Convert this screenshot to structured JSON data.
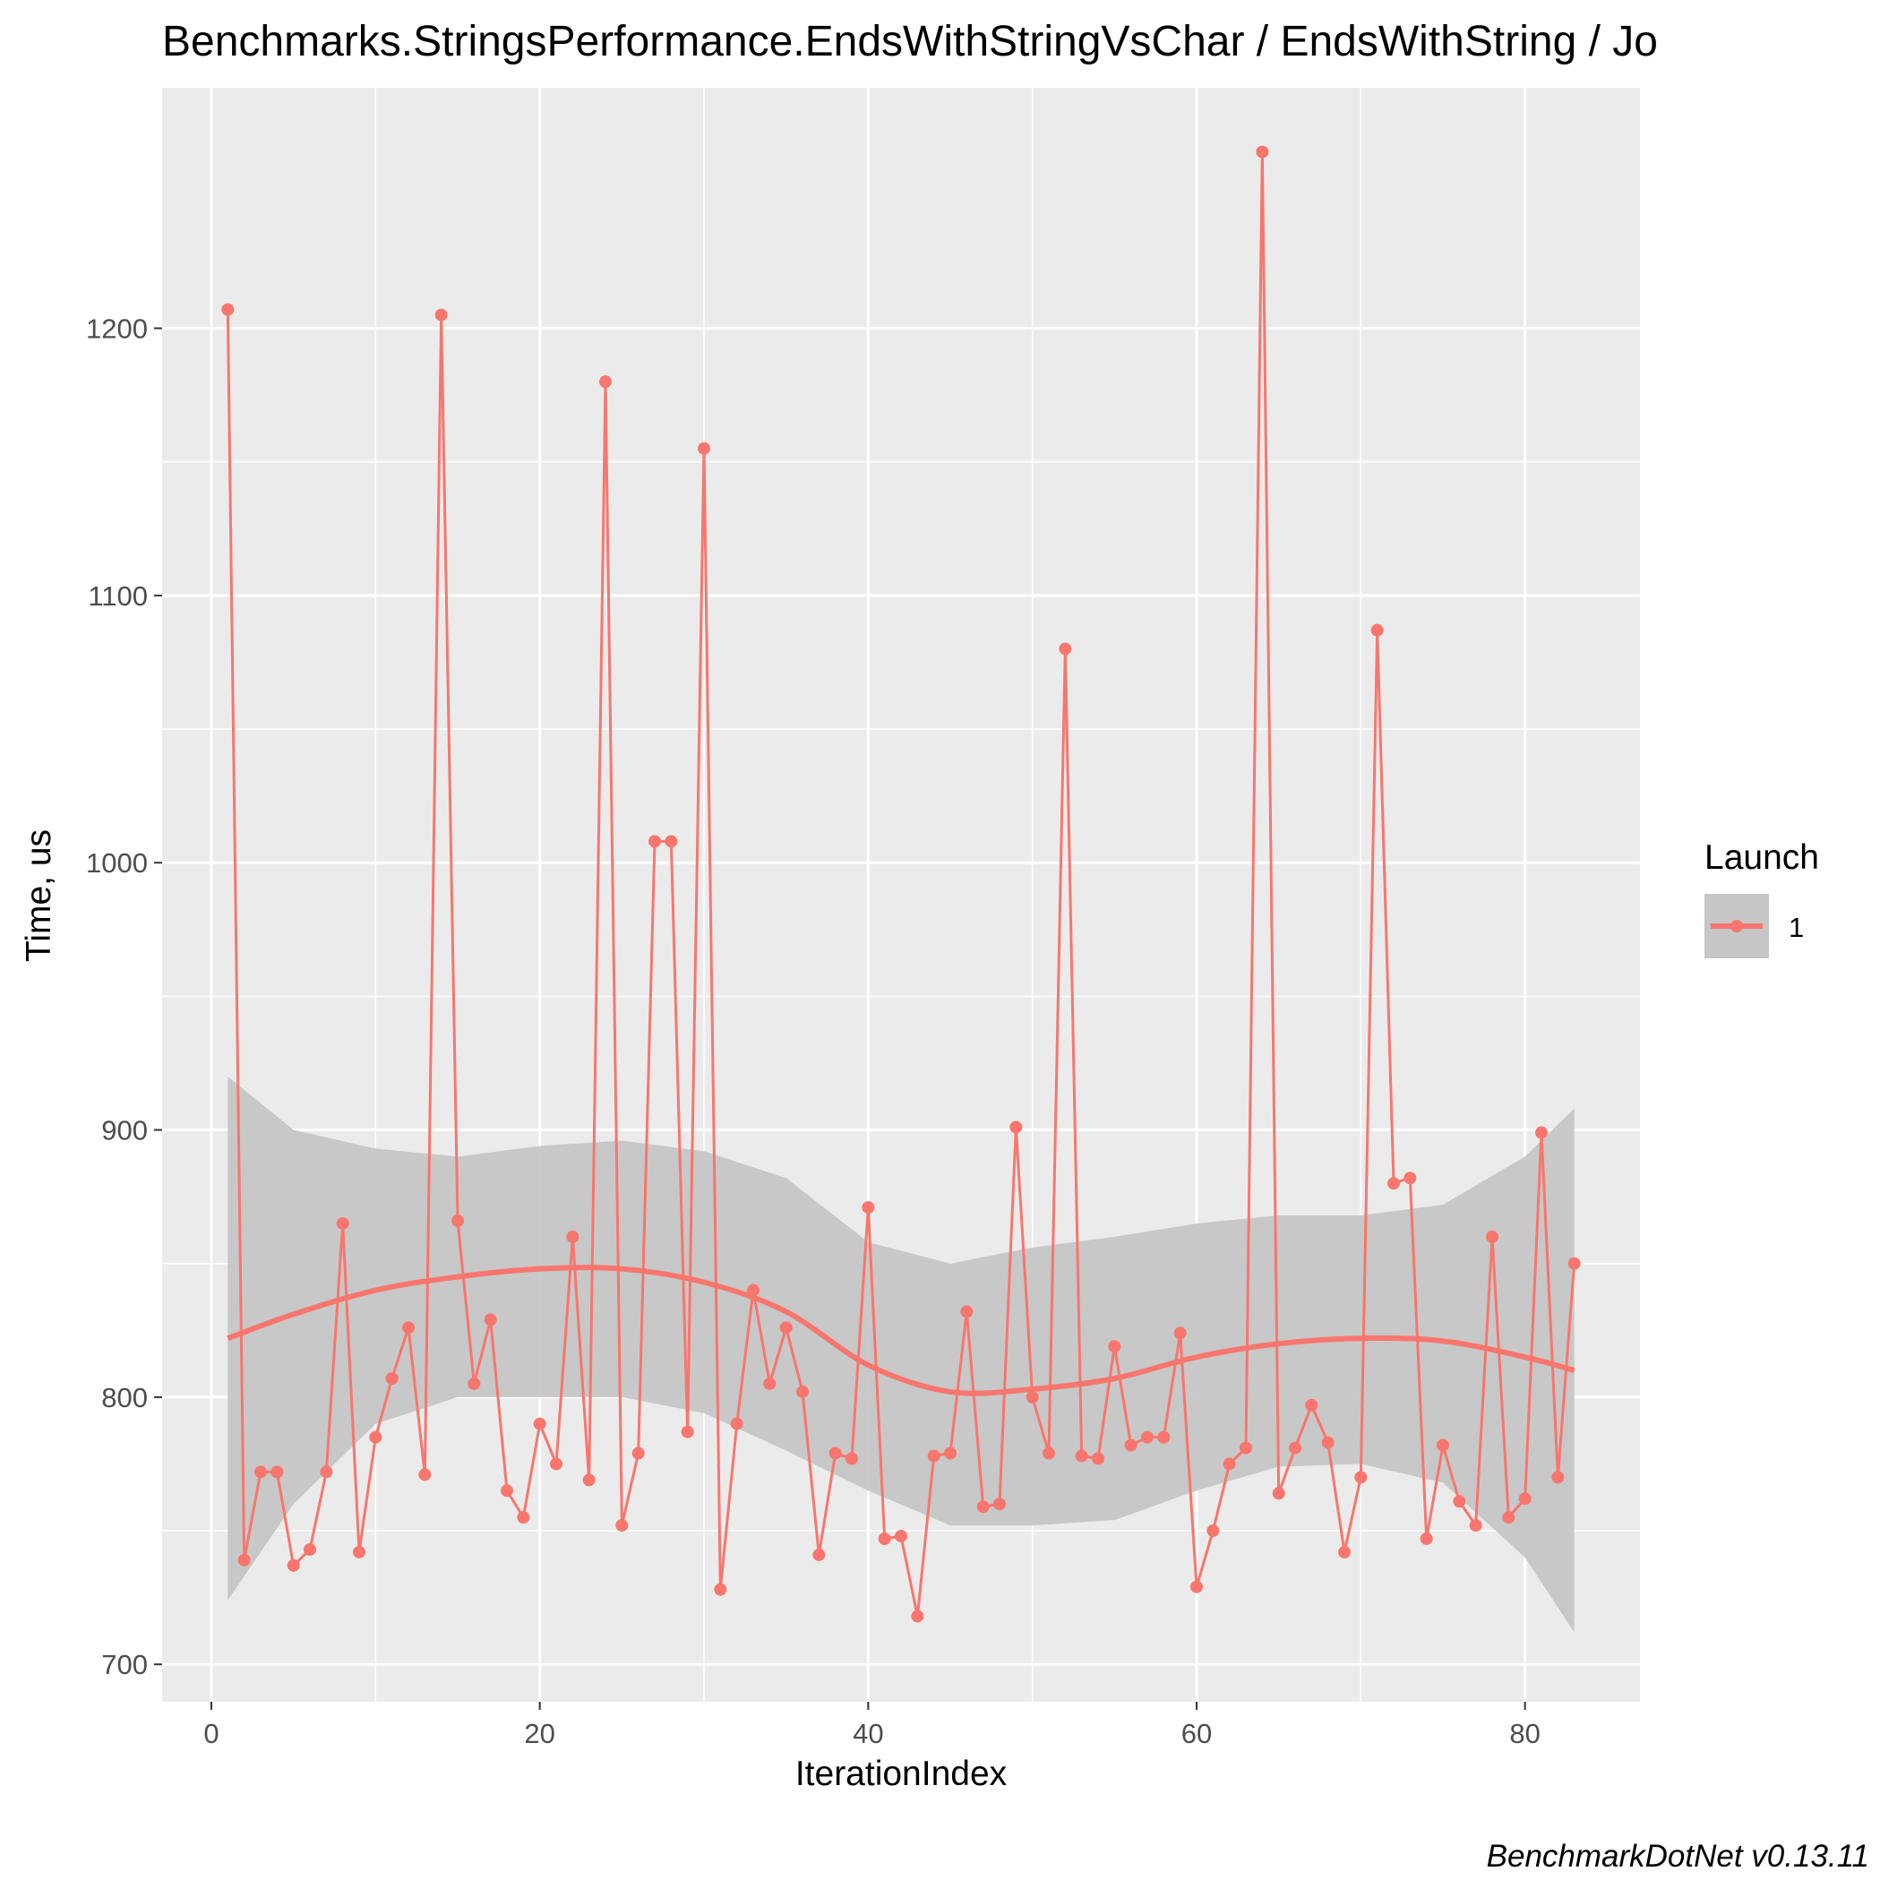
{
  "chart_data": {
    "type": "line",
    "title": "Benchmarks.StringsPerformance.EndsWithStringVsChar / EndsWithString / Jo",
    "xlabel": "IterationIndex",
    "ylabel": "Time, us",
    "xlim": [
      -3,
      87
    ],
    "ylim": [
      686,
      1290
    ],
    "x_ticks": [
      0,
      20,
      40,
      60,
      80
    ],
    "y_ticks": [
      700,
      800,
      900,
      1000,
      1100,
      1200
    ],
    "x_tick_labels": [
      "0",
      "20",
      "40",
      "60",
      "80"
    ],
    "y_tick_labels": [
      "700",
      "800",
      "900",
      "1000",
      "1100",
      "1200"
    ],
    "grid": true,
    "legend": {
      "title": "Launch",
      "placement": "right",
      "entries": [
        "1"
      ]
    },
    "caption": "BenchmarkDotNet v0.13.11",
    "colors": {
      "series": "#f8766d",
      "panel": "#ebebeb",
      "band": "#c6c6c6",
      "grid": "#ffffff",
      "tick_text": "#4d4d4d"
    },
    "series": [
      {
        "name": "1",
        "x": [
          1,
          2,
          3,
          4,
          5,
          6,
          7,
          8,
          9,
          10,
          11,
          12,
          13,
          14,
          15,
          16,
          17,
          18,
          19,
          20,
          21,
          22,
          23,
          24,
          25,
          26,
          27,
          28,
          29,
          30,
          31,
          32,
          33,
          34,
          35,
          36,
          37,
          38,
          39,
          40,
          41,
          42,
          43,
          44,
          45,
          46,
          47,
          48,
          49,
          50,
          51,
          52,
          53,
          54,
          55,
          56,
          57,
          58,
          59,
          60,
          61,
          62,
          63,
          64,
          65,
          66,
          67,
          68,
          69,
          70,
          71,
          72,
          73,
          74,
          75,
          76,
          77,
          78,
          79,
          80,
          81,
          82,
          83
        ],
        "values": [
          1207,
          739,
          772,
          772,
          737,
          743,
          772,
          865,
          742,
          785,
          807,
          826,
          771,
          1205,
          866,
          805,
          829,
          765,
          755,
          790,
          775,
          860,
          769,
          1180,
          752,
          779,
          1008,
          1008,
          787,
          1155,
          728,
          790,
          840,
          805,
          826,
          802,
          741,
          779,
          777,
          871,
          747,
          748,
          718,
          778,
          779,
          832,
          759,
          760,
          901,
          800,
          779,
          1080,
          778,
          777,
          819,
          782,
          785,
          785,
          824,
          729,
          750,
          775,
          781,
          1266,
          764,
          781,
          797,
          783,
          742,
          770,
          1087,
          880,
          882,
          747,
          782,
          761,
          752,
          860,
          755,
          762,
          899,
          770,
          850
        ]
      }
    ],
    "smooth": {
      "x": [
        1,
        5,
        10,
        15,
        20,
        25,
        30,
        35,
        40,
        45,
        50,
        55,
        60,
        65,
        70,
        75,
        80,
        83
      ],
      "fit": [
        822,
        831,
        840,
        845,
        848,
        848,
        843,
        832,
        812,
        802,
        803,
        807,
        815,
        820,
        822,
        821,
        815,
        810
      ],
      "upper": [
        920,
        900,
        893,
        890,
        894,
        896,
        892,
        882,
        858,
        850,
        856,
        860,
        865,
        868,
        868,
        872,
        890,
        908
      ],
      "lower": [
        724,
        760,
        790,
        800,
        800,
        800,
        794,
        780,
        765,
        752,
        752,
        754,
        765,
        774,
        775,
        768,
        740,
        712
      ]
    }
  }
}
